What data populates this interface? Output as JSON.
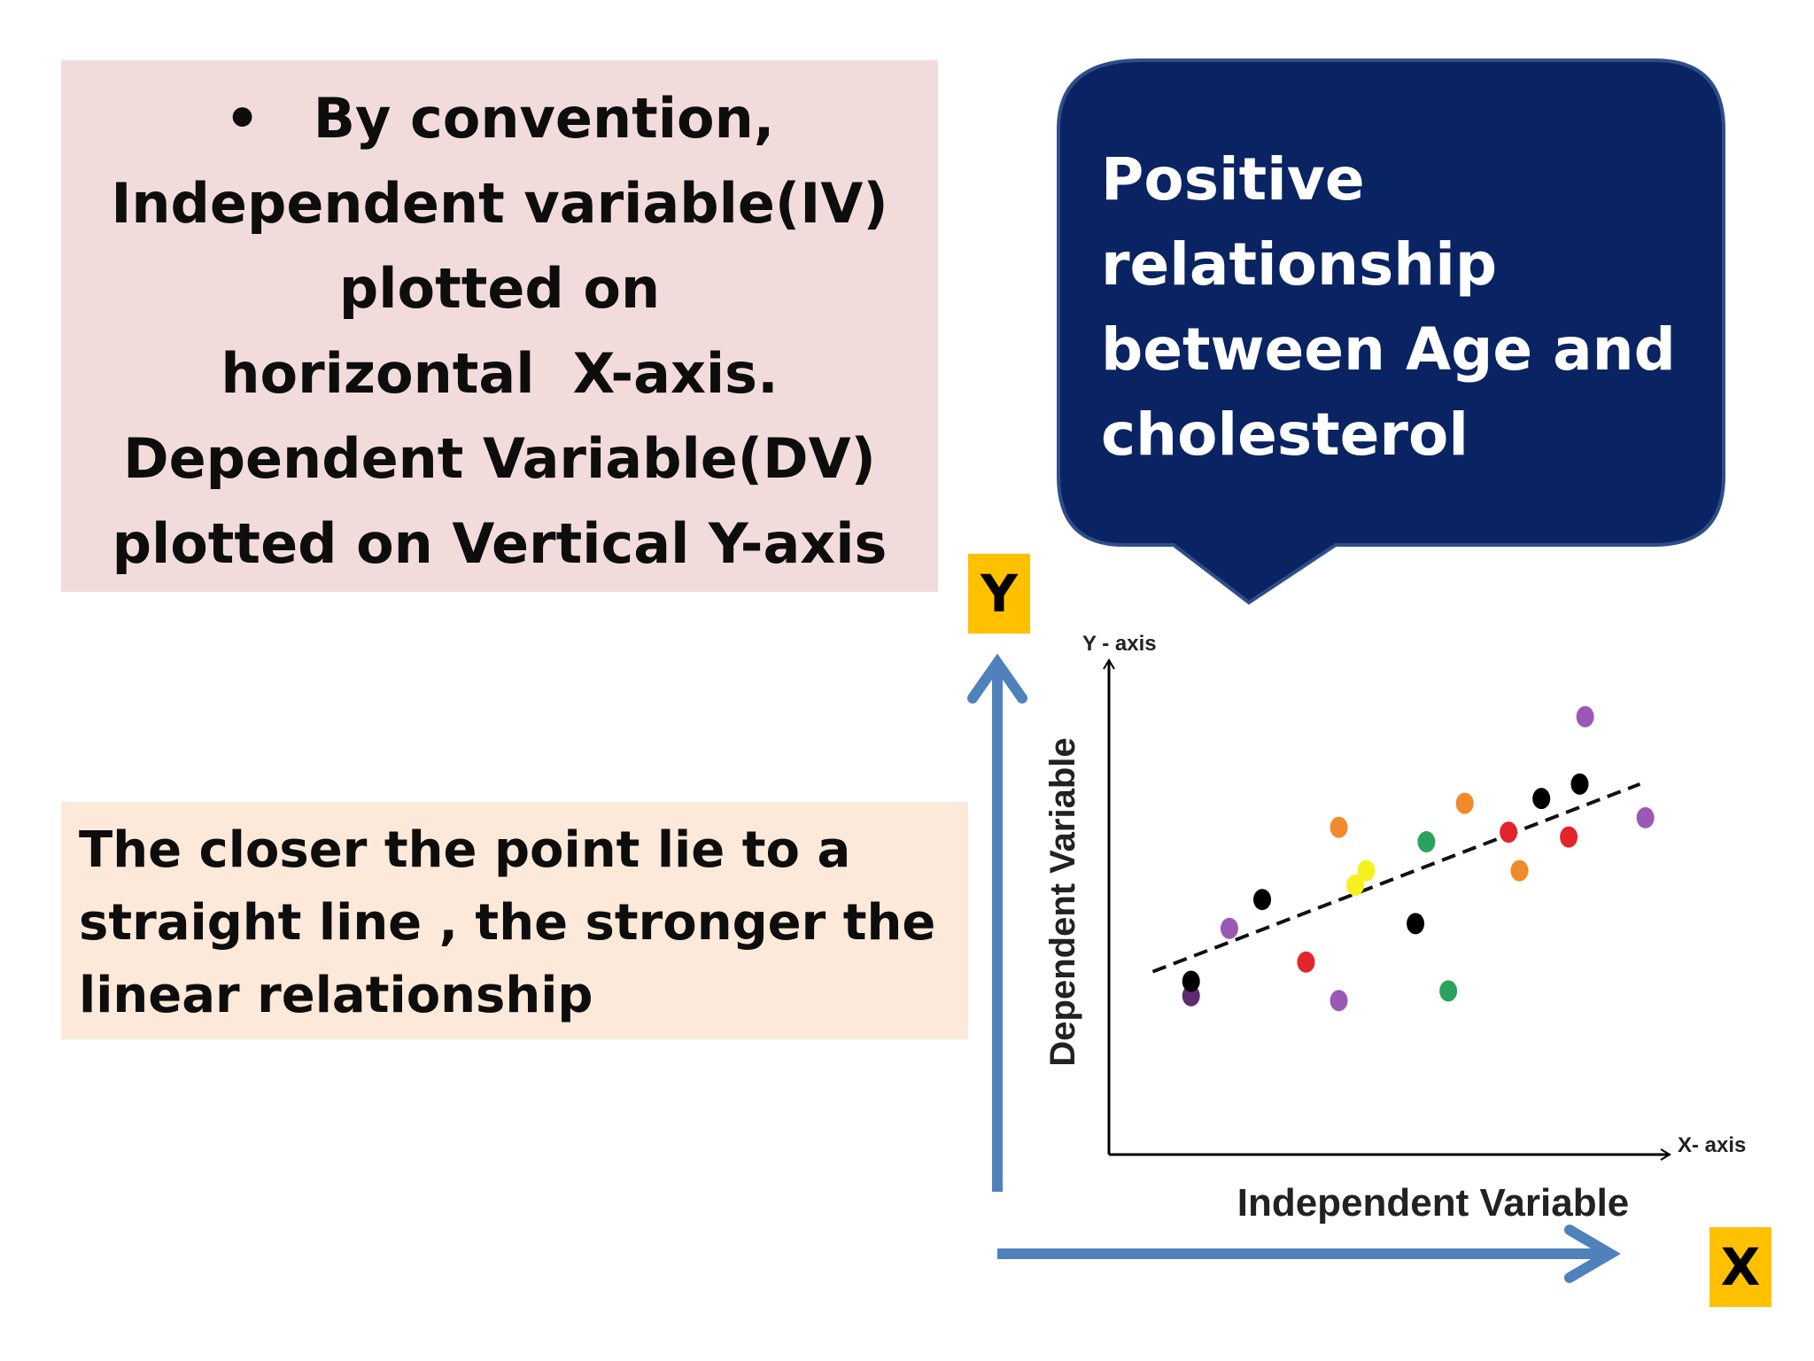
{
  "convention_box": {
    "bullet": "•",
    "lines": [
      "By convention,",
      "Independent variable(IV)",
      "plotted on",
      "horizontal  X-axis.",
      "Dependent Variable(DV)",
      "plotted on Vertical Y-axis"
    ]
  },
  "callout": {
    "lines": [
      "Positive",
      "relationship",
      "between Age and",
      "cholesterol"
    ],
    "color": "#0a2463"
  },
  "linearity_box": {
    "lines": [
      "The closer the point lie to a",
      "straight line , the stronger the",
      "linear relationship"
    ]
  },
  "big_axes": {
    "y_letter": "Y",
    "x_letter": "X",
    "arrow_color": "#4f81bd"
  },
  "chart_data": {
    "type": "scatter",
    "xlabel": "Independent Variable",
    "ylabel": "Dependent Variable",
    "x_axis_tag": "X- axis",
    "y_axis_tag": "Y - axis",
    "xlim": [
      0,
      100
    ],
    "ylim": [
      0,
      100
    ],
    "points": [
      {
        "x": 15,
        "y": 33,
        "color": "#5b2c6f"
      },
      {
        "x": 22,
        "y": 47,
        "color": "#9b59b6"
      },
      {
        "x": 28,
        "y": 53,
        "color": "#000000"
      },
      {
        "x": 36,
        "y": 40,
        "color": "#e3242b"
      },
      {
        "x": 42,
        "y": 32,
        "color": "#9b59b6"
      },
      {
        "x": 45,
        "y": 56,
        "color": "#f7f01f"
      },
      {
        "x": 42,
        "y": 68,
        "color": "#f18a2b"
      },
      {
        "x": 47,
        "y": 59,
        "color": "#f7f01f"
      },
      {
        "x": 56,
        "y": 48,
        "color": "#000000"
      },
      {
        "x": 58,
        "y": 65,
        "color": "#2ca25f"
      },
      {
        "x": 62,
        "y": 34,
        "color": "#2ca25f"
      },
      {
        "x": 65,
        "y": 73,
        "color": "#f18a2b"
      },
      {
        "x": 73,
        "y": 67,
        "color": "#e3242b"
      },
      {
        "x": 75,
        "y": 59,
        "color": "#f18a2b"
      },
      {
        "x": 79,
        "y": 74,
        "color": "#000000"
      },
      {
        "x": 84,
        "y": 66,
        "color": "#e3242b"
      },
      {
        "x": 86,
        "y": 77,
        "color": "#000000"
      },
      {
        "x": 87,
        "y": 91,
        "color": "#9b59b6"
      },
      {
        "x": 98,
        "y": 70,
        "color": "#9b59b6"
      },
      {
        "x": 15,
        "y": 36,
        "color": "#000000"
      }
    ],
    "trend_line": {
      "x": [
        8,
        97
      ],
      "y": [
        38,
        77
      ]
    }
  }
}
